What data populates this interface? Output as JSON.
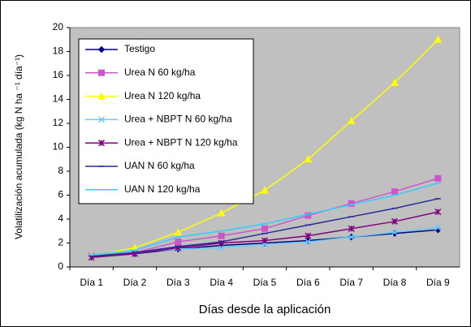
{
  "chart_data": {
    "type": "line",
    "y_label": "Volatilización acumulada (kg N ha ⁻¹ día⁻¹)",
    "x_label": "Días desde la aplicación",
    "categories": [
      "Día 1",
      "Día 2",
      "Día 3",
      "Día 4",
      "Día 5",
      "Día 6",
      "Día 7",
      "Día 8",
      "Día 9"
    ],
    "ylim": [
      0,
      20
    ],
    "yticks": [
      0,
      2,
      4,
      6,
      8,
      10,
      12,
      14,
      16,
      18,
      20
    ],
    "grid": false,
    "legend": "upper left",
    "series": [
      {
        "name": "Testigo",
        "color": "#000080",
        "marker": "diamond",
        "values": [
          0.8,
          1.1,
          1.5,
          1.8,
          2.0,
          2.2,
          2.5,
          2.8,
          3.1
        ]
      },
      {
        "name": "Urea N 60 kg/ha",
        "color": "#cc55cc",
        "marker": "square",
        "values": [
          0.9,
          1.2,
          2.1,
          2.6,
          3.2,
          4.3,
          5.3,
          6.3,
          7.4
        ]
      },
      {
        "name": "Urea N 120 kg/ha",
        "color": "#ffff00",
        "marker": "triangle",
        "values": [
          0.9,
          1.6,
          2.9,
          4.5,
          6.4,
          9.0,
          12.2,
          15.4,
          19.0
        ]
      },
      {
        "name": "Urea + NBPT N 60 kg/ha",
        "color": "#66ccff",
        "marker": "x",
        "values": [
          0.9,
          1.2,
          1.5,
          1.6,
          1.9,
          2.1,
          2.5,
          2.9,
          3.3
        ]
      },
      {
        "name": "Urea + NBPT N 120 kg/ha",
        "color": "#800080",
        "marker": "star",
        "values": [
          0.8,
          1.1,
          1.6,
          2.0,
          2.2,
          2.6,
          3.2,
          3.8,
          4.6
        ]
      },
      {
        "name": "UAN N 60 kg/ha",
        "color": "#2a2a9a",
        "marker": "dash",
        "values": [
          0.9,
          1.2,
          1.7,
          2.1,
          2.8,
          3.5,
          4.2,
          4.9,
          5.7
        ]
      },
      {
        "name": "UAN N 120 kg/ha",
        "color": "#33ccff",
        "marker": "dash",
        "values": [
          1.0,
          1.4,
          2.5,
          3.0,
          3.6,
          4.4,
          5.2,
          6.0,
          7.0
        ]
      }
    ]
  }
}
